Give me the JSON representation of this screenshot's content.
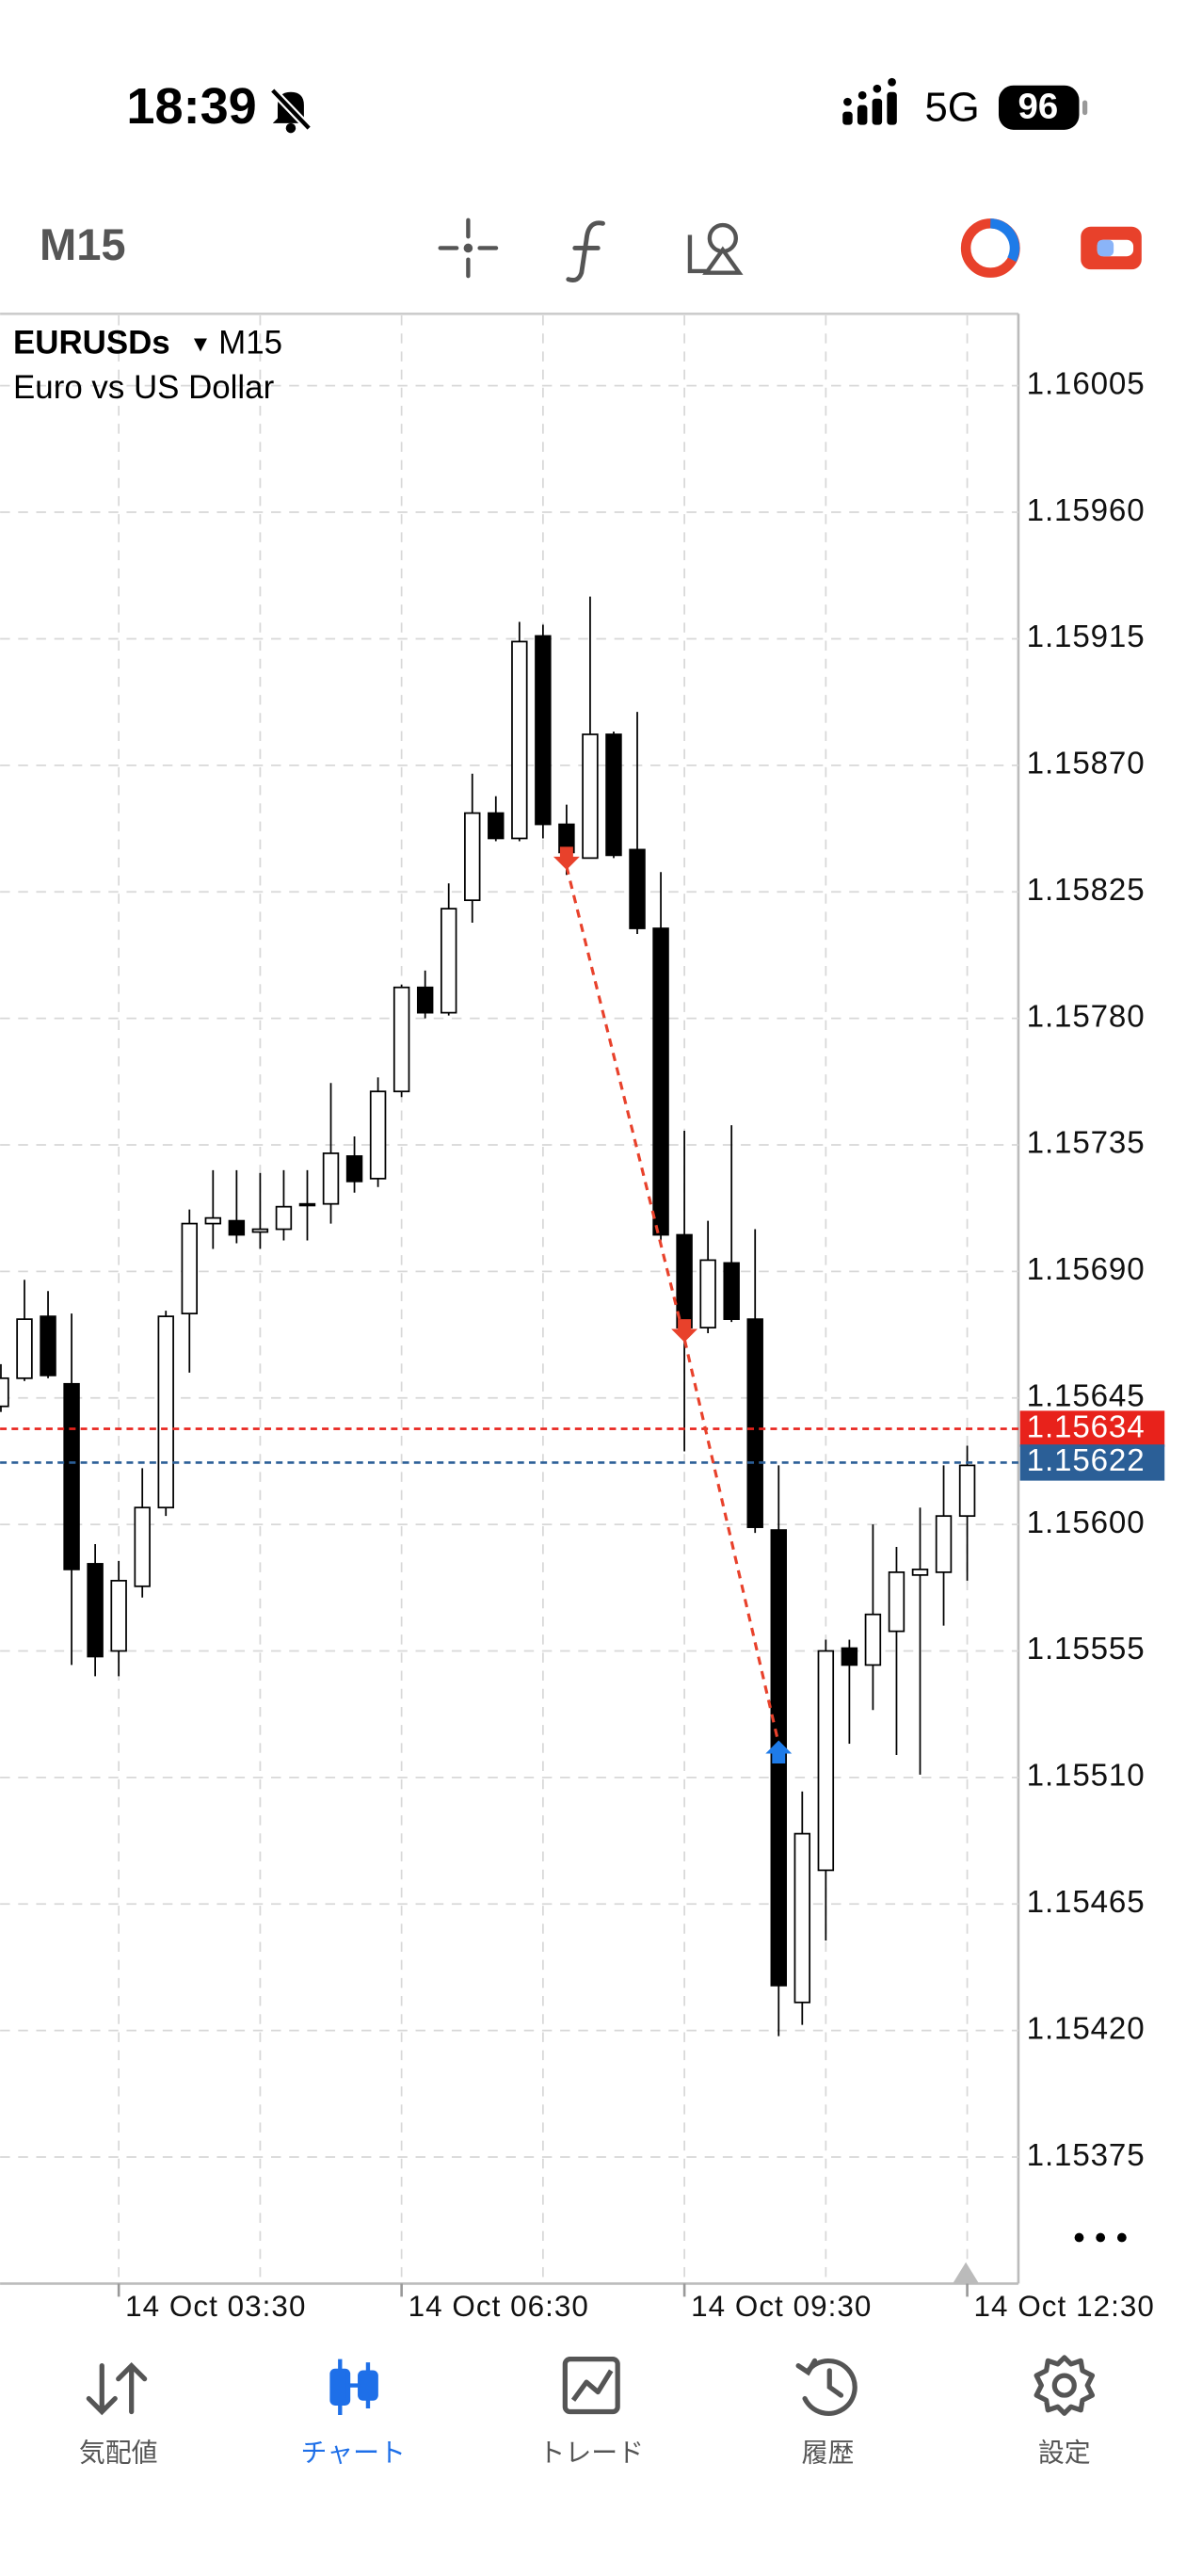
{
  "status": {
    "time": "18:39",
    "network": "5G",
    "battery": "96"
  },
  "toolbar": {
    "timeframe": "M15"
  },
  "chart_data": {
    "type": "candlestick",
    "symbol": "EURUSDs",
    "timeframe": "M15",
    "description": "Euro vs US Dollar",
    "categories": [
      null,
      null,
      null,
      null,
      null,
      "14 Oct 03:30",
      null,
      null,
      null,
      null,
      null,
      null,
      null,
      null,
      null,
      null,
      null,
      "14 Oct 06:30",
      null,
      null,
      null,
      null,
      null,
      null,
      null,
      null,
      null,
      null,
      null,
      "14 Oct 09:30",
      null,
      null,
      null,
      null,
      null,
      null,
      null,
      null,
      null,
      null,
      null,
      "14 Oct 12:30"
    ],
    "open": [
      1.15642,
      1.15652,
      1.15674,
      1.1565,
      1.15586,
      1.15555,
      1.15578,
      1.15606,
      1.15675,
      1.15707,
      1.15708,
      1.15704,
      1.15705,
      1.15714,
      1.15714,
      1.15731,
      1.15723,
      1.15754,
      1.15791,
      1.15782,
      1.15822,
      1.15853,
      1.15844,
      1.15916,
      1.15849,
      1.15837,
      1.15881,
      1.1584,
      1.15812,
      1.15703,
      1.1567,
      1.15693,
      1.15673,
      1.15598,
      1.1543,
      1.15477,
      1.15556,
      1.1555,
      1.15562,
      1.15582,
      1.15583,
      1.15603
    ],
    "high": [
      1.15657,
      1.15687,
      1.15683,
      1.15675,
      1.15593,
      1.15587,
      1.1562,
      1.15676,
      1.15712,
      1.15726,
      1.15726,
      1.15725,
      1.15726,
      1.15726,
      1.15757,
      1.15738,
      1.15759,
      1.15792,
      1.15797,
      1.15828,
      1.15867,
      1.15859,
      1.15921,
      1.1592,
      1.15856,
      1.1593,
      1.15882,
      1.15889,
      1.15832,
      1.1574,
      1.15708,
      1.15742,
      1.15705,
      1.15621,
      1.15505,
      1.15559,
      1.15559,
      1.156,
      1.15592,
      1.15606,
      1.15621,
      1.15628
    ],
    "low": [
      1.1564,
      1.15651,
      1.15652,
      1.1555,
      1.15546,
      1.15546,
      1.15574,
      1.15603,
      1.15654,
      1.15698,
      1.157,
      1.15698,
      1.15701,
      1.15701,
      1.15707,
      1.15718,
      1.1572,
      1.15752,
      1.1578,
      1.15781,
      1.15814,
      1.15843,
      1.15843,
      1.15844,
      1.15831,
      1.15837,
      1.15837,
      1.1581,
      1.15701,
      1.15626,
      1.15668,
      1.15672,
      1.15597,
      1.15418,
      1.15422,
      1.15452,
      1.15522,
      1.15534,
      1.15518,
      1.15511,
      1.15564,
      1.1558
    ],
    "close": [
      1.15652,
      1.15673,
      1.15653,
      1.15584,
      1.15553,
      1.1558,
      1.15606,
      1.15674,
      1.15707,
      1.15709,
      1.15703,
      1.15705,
      1.15713,
      1.15714,
      1.15732,
      1.15722,
      1.15754,
      1.15791,
      1.15782,
      1.15819,
      1.15853,
      1.15844,
      1.15914,
      1.15849,
      1.15839,
      1.15881,
      1.15838,
      1.15812,
      1.15703,
      1.1567,
      1.15694,
      1.15673,
      1.15599,
      1.15436,
      1.1549,
      1.15555,
      1.1555,
      1.15568,
      1.15583,
      1.15584,
      1.15603,
      1.15621
    ],
    "up_color": "#ffffff",
    "down_color": "#000000",
    "ylim": [
      1.1533,
      1.1603
    ],
    "yticks": [
      1.16005,
      {
        "value": 1.1596,
        "label": "1.15960"
      },
      1.15915,
      {
        "value": 1.1587,
        "label": "1.15870"
      },
      1.15825,
      {
        "value": 1.1578,
        "label": "1.15780"
      },
      1.15735,
      {
        "value": 1.1569,
        "label": "1.15690"
      },
      1.15645,
      {
        "value": 1.156,
        "label": "1.15600"
      },
      1.15555,
      {
        "value": 1.1551,
        "label": "1.15510"
      },
      1.15465,
      {
        "value": 1.1542,
        "label": "1.15420"
      },
      1.15375
    ],
    "grid": true,
    "ask": {
      "value": 1.15634,
      "color": "#e8221b"
    },
    "bid": {
      "value": 1.15622,
      "color": "#2b5f97"
    },
    "trades": {
      "index": [
        24,
        29,
        33
      ],
      "price": [
        1.15834,
        1.15666,
        1.15522
      ],
      "colors": [
        "#e8412b",
        "#e8412b",
        "#1e7be8"
      ],
      "line_color": "#e8412b"
    }
  },
  "nav": [
    {
      "label": "気配値",
      "active": false
    },
    {
      "label": "チャート",
      "active": true
    },
    {
      "label": "トレード",
      "active": false
    },
    {
      "label": "履歴",
      "active": false
    },
    {
      "label": "設定",
      "active": false
    }
  ]
}
